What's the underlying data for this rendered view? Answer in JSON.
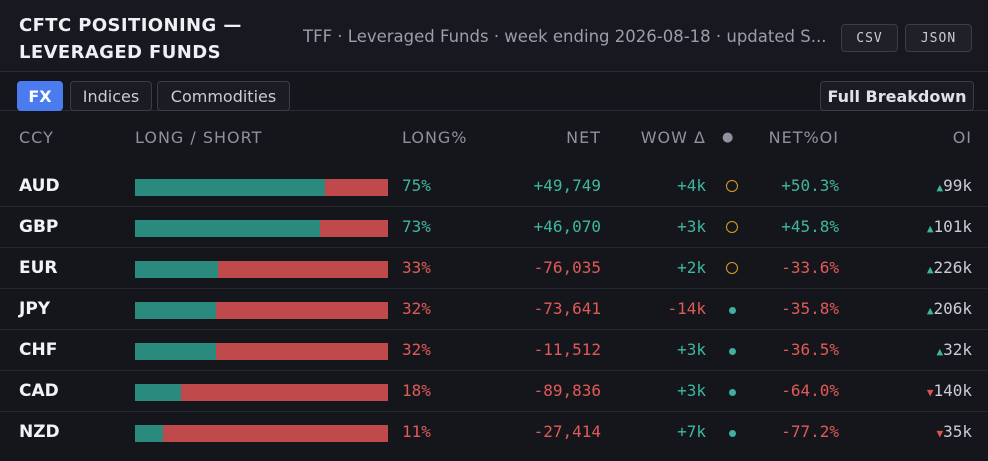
{
  "header": {
    "title_line1": "CFTC POSITIONING —",
    "title_line2": "LEVERAGED FUNDS",
    "subtitle": "TFF · Leveraged Funds · week ending 2026-08-18 · updated S...",
    "csv_label": "CSV",
    "json_label": "JSON"
  },
  "tabs": [
    {
      "label": "FX",
      "active": true
    },
    {
      "label": "Indices",
      "active": false
    },
    {
      "label": "Commodities",
      "active": false
    }
  ],
  "breakdown_label": "Full Breakdown",
  "columns": {
    "ccy": "CCY",
    "long_short": "LONG / SHORT",
    "long_pct": "LONG%",
    "net": "NET",
    "wow": "WOW Δ",
    "dot": "●",
    "net_oi": "NET%OI",
    "oi": "OI"
  },
  "colors": {
    "long": "#2a8a7e",
    "short": "#c0494b",
    "positive": "#3db89f",
    "negative": "#e05a57",
    "accent": "#4a7cf0",
    "ring": "#d8a02a"
  },
  "rows": [
    {
      "ccy": "AUD",
      "long_fraction": 0.75,
      "long_pct": "75%",
      "net": "+49,749",
      "wow": "+4k",
      "marker": "ring",
      "net_oi": "+50.3%",
      "oi_dir": "up",
      "oi": "99k"
    },
    {
      "ccy": "GBP",
      "long_fraction": 0.73,
      "long_pct": "73%",
      "net": "+46,070",
      "wow": "+3k",
      "marker": "ring",
      "net_oi": "+45.8%",
      "oi_dir": "up",
      "oi": "101k"
    },
    {
      "ccy": "EUR",
      "long_fraction": 0.33,
      "long_pct": "33%",
      "net": "-76,035",
      "wow": "+2k",
      "marker": "ring",
      "net_oi": "-33.6%",
      "oi_dir": "up",
      "oi": "226k"
    },
    {
      "ccy": "JPY",
      "long_fraction": 0.32,
      "long_pct": "32%",
      "net": "-73,641",
      "wow": "-14k",
      "marker": "dot",
      "net_oi": "-35.8%",
      "oi_dir": "up",
      "oi": "206k"
    },
    {
      "ccy": "CHF",
      "long_fraction": 0.32,
      "long_pct": "32%",
      "net": "-11,512",
      "wow": "+3k",
      "marker": "dot",
      "net_oi": "-36.5%",
      "oi_dir": "up",
      "oi": "32k"
    },
    {
      "ccy": "CAD",
      "long_fraction": 0.18,
      "long_pct": "18%",
      "net": "-89,836",
      "wow": "+3k",
      "marker": "dot",
      "net_oi": "-64.0%",
      "oi_dir": "down",
      "oi": "140k"
    },
    {
      "ccy": "NZD",
      "long_fraction": 0.11,
      "long_pct": "11%",
      "net": "-27,414",
      "wow": "+7k",
      "marker": "dot",
      "net_oi": "-77.2%",
      "oi_dir": "down",
      "oi": "35k"
    }
  ]
}
